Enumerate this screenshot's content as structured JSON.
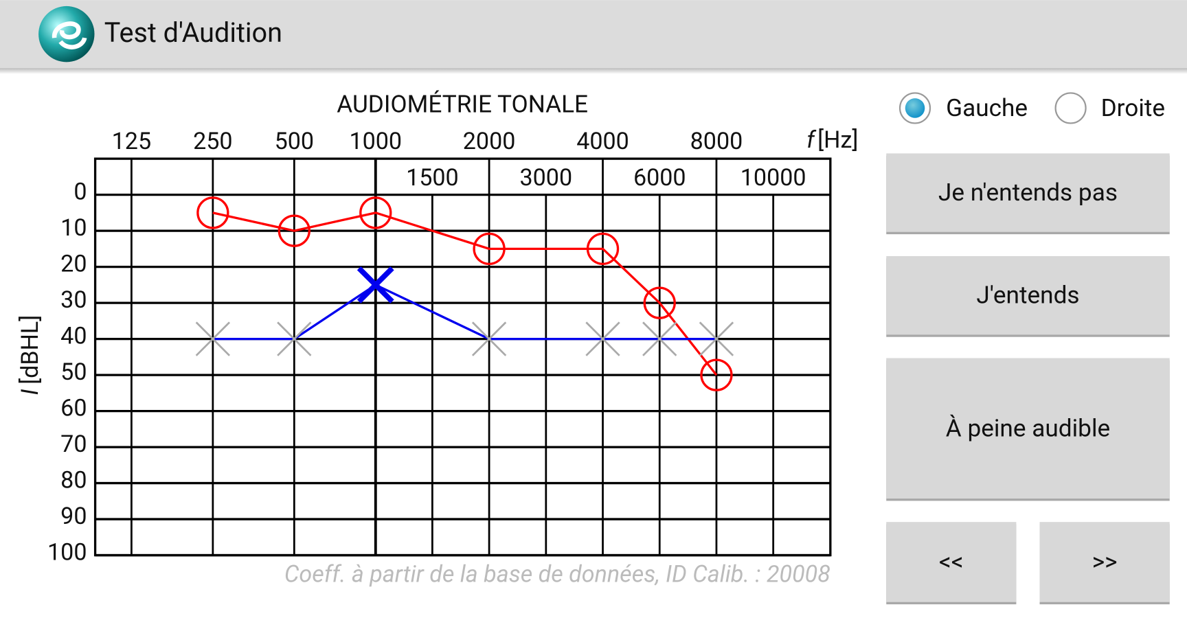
{
  "app_bar": {
    "title": "Test d'Audition"
  },
  "ear_selector": {
    "options": [
      "Gauche",
      "Droite"
    ],
    "selected": 0
  },
  "buttons": [
    "Je n'entends pas",
    "J'entends",
    "À peine audible",
    "<<",
    ">>"
  ],
  "chart_data": {
    "type": "line",
    "title": "AUDIOMÉTRIE TONALE",
    "x_label": {
      "symbol": "f",
      "unit": "[Hz]"
    },
    "y_label": {
      "symbol": "I",
      "unit": "[dBHL]"
    },
    "xticks": [
      125,
      250,
      500,
      1000,
      1500,
      2000,
      3000,
      4000,
      6000,
      8000,
      10000
    ],
    "ylim": [
      -10,
      100
    ],
    "yticks": [
      0,
      10,
      20,
      30,
      40,
      50,
      60,
      70,
      80,
      90,
      100
    ],
    "y_inverted": true,
    "grid": true,
    "series": [
      {
        "color": "#ff0000",
        "marker": "circle",
        "x": [
          250,
          500,
          1000,
          2000,
          4000,
          6000,
          8000
        ],
        "values": [
          5,
          10,
          5,
          15,
          15,
          30,
          50
        ]
      },
      {
        "color": "#0000ee",
        "marker": "x",
        "x": [
          250,
          500,
          1000,
          2000,
          4000,
          6000,
          8000
        ],
        "values": [
          40,
          40,
          25,
          40,
          40,
          40,
          40
        ],
        "marker_colors": [
          "#aaaaaa",
          "#aaaaaa",
          "#0000ee",
          "#aaaaaa",
          "#aaaaaa",
          "#aaaaaa",
          "#aaaaaa"
        ]
      }
    ],
    "footnote": "Coeff. à partir de la base de données, ID Calib. : 20008"
  }
}
